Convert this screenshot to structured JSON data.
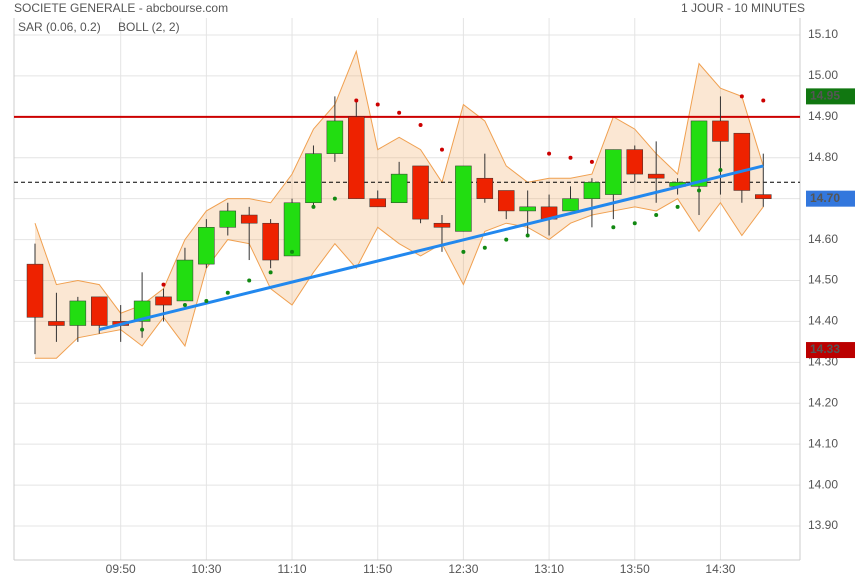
{
  "chart_data": {
    "type": "candlestick",
    "title": "SOCIETE GENERALE - abcbourse.com",
    "subtitle": "1 JOUR - 10 MINUTES",
    "categories": [
      null,
      null,
      null,
      null,
      "09:50",
      null,
      null,
      null,
      "10:30",
      null,
      null,
      null,
      "11:10",
      null,
      null,
      null,
      "11:50",
      null,
      null,
      null,
      "12:30",
      null,
      null,
      null,
      "13:10",
      null,
      null,
      null,
      "13:50",
      null,
      null,
      null,
      "14:30",
      null,
      null
    ],
    "open": [
      14.54,
      14.4,
      14.39,
      14.46,
      14.4,
      14.4,
      14.46,
      14.45,
      14.54,
      14.63,
      14.66,
      14.64,
      14.56,
      14.69,
      14.81,
      14.9,
      14.7,
      14.69,
      14.78,
      14.64,
      14.62,
      14.75,
      14.72,
      14.67,
      14.68,
      14.67,
      14.7,
      14.71,
      14.82,
      14.76,
      14.73,
      14.73,
      14.89,
      14.86,
      14.71
    ],
    "high": [
      14.59,
      14.47,
      14.46,
      14.46,
      14.44,
      14.52,
      14.48,
      14.58,
      14.65,
      14.69,
      14.68,
      14.65,
      14.7,
      14.83,
      14.95,
      14.94,
      14.72,
      14.79,
      14.78,
      14.66,
      14.78,
      14.81,
      14.72,
      14.72,
      14.71,
      14.73,
      14.75,
      14.82,
      14.83,
      14.84,
      14.75,
      14.89,
      14.95,
      14.86,
      14.81
    ],
    "low": [
      14.32,
      14.35,
      14.35,
      14.37,
      14.35,
      14.36,
      14.4,
      14.45,
      14.53,
      14.61,
      14.55,
      14.53,
      14.56,
      14.68,
      14.79,
      14.7,
      14.68,
      14.69,
      14.64,
      14.57,
      14.62,
      14.69,
      14.65,
      14.61,
      14.61,
      14.67,
      14.63,
      14.65,
      14.74,
      14.69,
      14.71,
      14.66,
      14.71,
      14.69,
      14.68
    ],
    "close": [
      14.41,
      14.39,
      14.45,
      14.39,
      14.39,
      14.45,
      14.44,
      14.55,
      14.63,
      14.67,
      14.64,
      14.55,
      14.69,
      14.81,
      14.89,
      14.7,
      14.68,
      14.76,
      14.65,
      14.63,
      14.78,
      14.7,
      14.67,
      14.68,
      14.65,
      14.7,
      14.74,
      14.82,
      14.76,
      14.75,
      14.74,
      14.89,
      14.84,
      14.72,
      14.7
    ],
    "up_color": "#22dd11",
    "down_color": "#ee2200",
    "series": [
      {
        "name": "SAR (0.06, 0.2)",
        "color": "#cc0000",
        "values": [
          null,
          null,
          null,
          null,
          null,
          14.38,
          14.49,
          14.44,
          14.45,
          14.47,
          14.5,
          14.52,
          14.57,
          14.68,
          14.7,
          14.94,
          14.93,
          14.91,
          14.88,
          14.82,
          14.57,
          14.58,
          14.6,
          14.61,
          14.81,
          14.8,
          14.79,
          14.63,
          14.64,
          14.66,
          14.68,
          14.72,
          14.77,
          14.95,
          14.94
        ]
      },
      {
        "name": "BOLL (2, 2)",
        "color": "#f0a050",
        "upper": [
          14.64,
          14.49,
          14.5,
          14.49,
          14.42,
          14.44,
          14.48,
          14.6,
          14.67,
          14.7,
          14.7,
          14.69,
          14.76,
          14.87,
          14.93,
          15.06,
          14.82,
          14.85,
          14.82,
          14.74,
          14.93,
          14.89,
          14.78,
          14.74,
          14.75,
          14.75,
          14.76,
          14.9,
          14.87,
          14.81,
          14.76,
          15.03,
          14.97,
          14.95,
          14.78
        ],
        "lower": [
          14.31,
          14.31,
          14.36,
          14.37,
          14.38,
          14.34,
          14.41,
          14.34,
          14.53,
          14.6,
          14.59,
          14.48,
          14.44,
          14.52,
          14.59,
          14.53,
          14.63,
          14.59,
          14.56,
          14.59,
          14.49,
          14.62,
          14.64,
          14.63,
          14.6,
          14.64,
          14.66,
          14.67,
          14.68,
          14.67,
          14.7,
          14.62,
          14.69,
          14.61,
          14.68
        ]
      }
    ],
    "trendline": {
      "x": [
        3,
        34
      ],
      "values": [
        14.38,
        14.78
      ],
      "color": "#2288ee"
    },
    "hlines": [
      {
        "value": 14.9,
        "color": "#cc0000",
        "dashed": false
      },
      {
        "value": 14.74,
        "color": "#000000",
        "dashed": true
      }
    ],
    "price_labels": [
      {
        "value": 14.95,
        "label": "14.95",
        "color": "#117711"
      },
      {
        "value": 14.7,
        "label": "14.70",
        "color": "#3377dd"
      },
      {
        "value": 14.33,
        "label": "14.33",
        "color": "#bb0000"
      }
    ],
    "ylim": [
      13.86,
      15.1
    ],
    "yticks": [
      {
        "value": 13.9,
        "label": "13.90"
      },
      {
        "value": 14.0,
        "label": "14.00"
      },
      {
        "value": 14.1,
        "label": "14.10"
      },
      {
        "value": 14.2,
        "label": "14.20"
      },
      {
        "value": 14.3,
        "label": "14.30"
      },
      {
        "value": 14.4,
        "label": "14.40"
      },
      {
        "value": 14.5,
        "label": "14.50"
      },
      {
        "value": 14.6,
        "label": "14.60"
      },
      {
        "value": 14.7,
        "label": "14.70"
      },
      {
        "value": 14.8,
        "label": "14.80"
      },
      {
        "value": 14.9,
        "label": "14.90"
      },
      {
        "value": 15.0,
        "label": "15.00"
      },
      {
        "value": 15.1,
        "label": "15.10"
      }
    ],
    "grid": true
  }
}
